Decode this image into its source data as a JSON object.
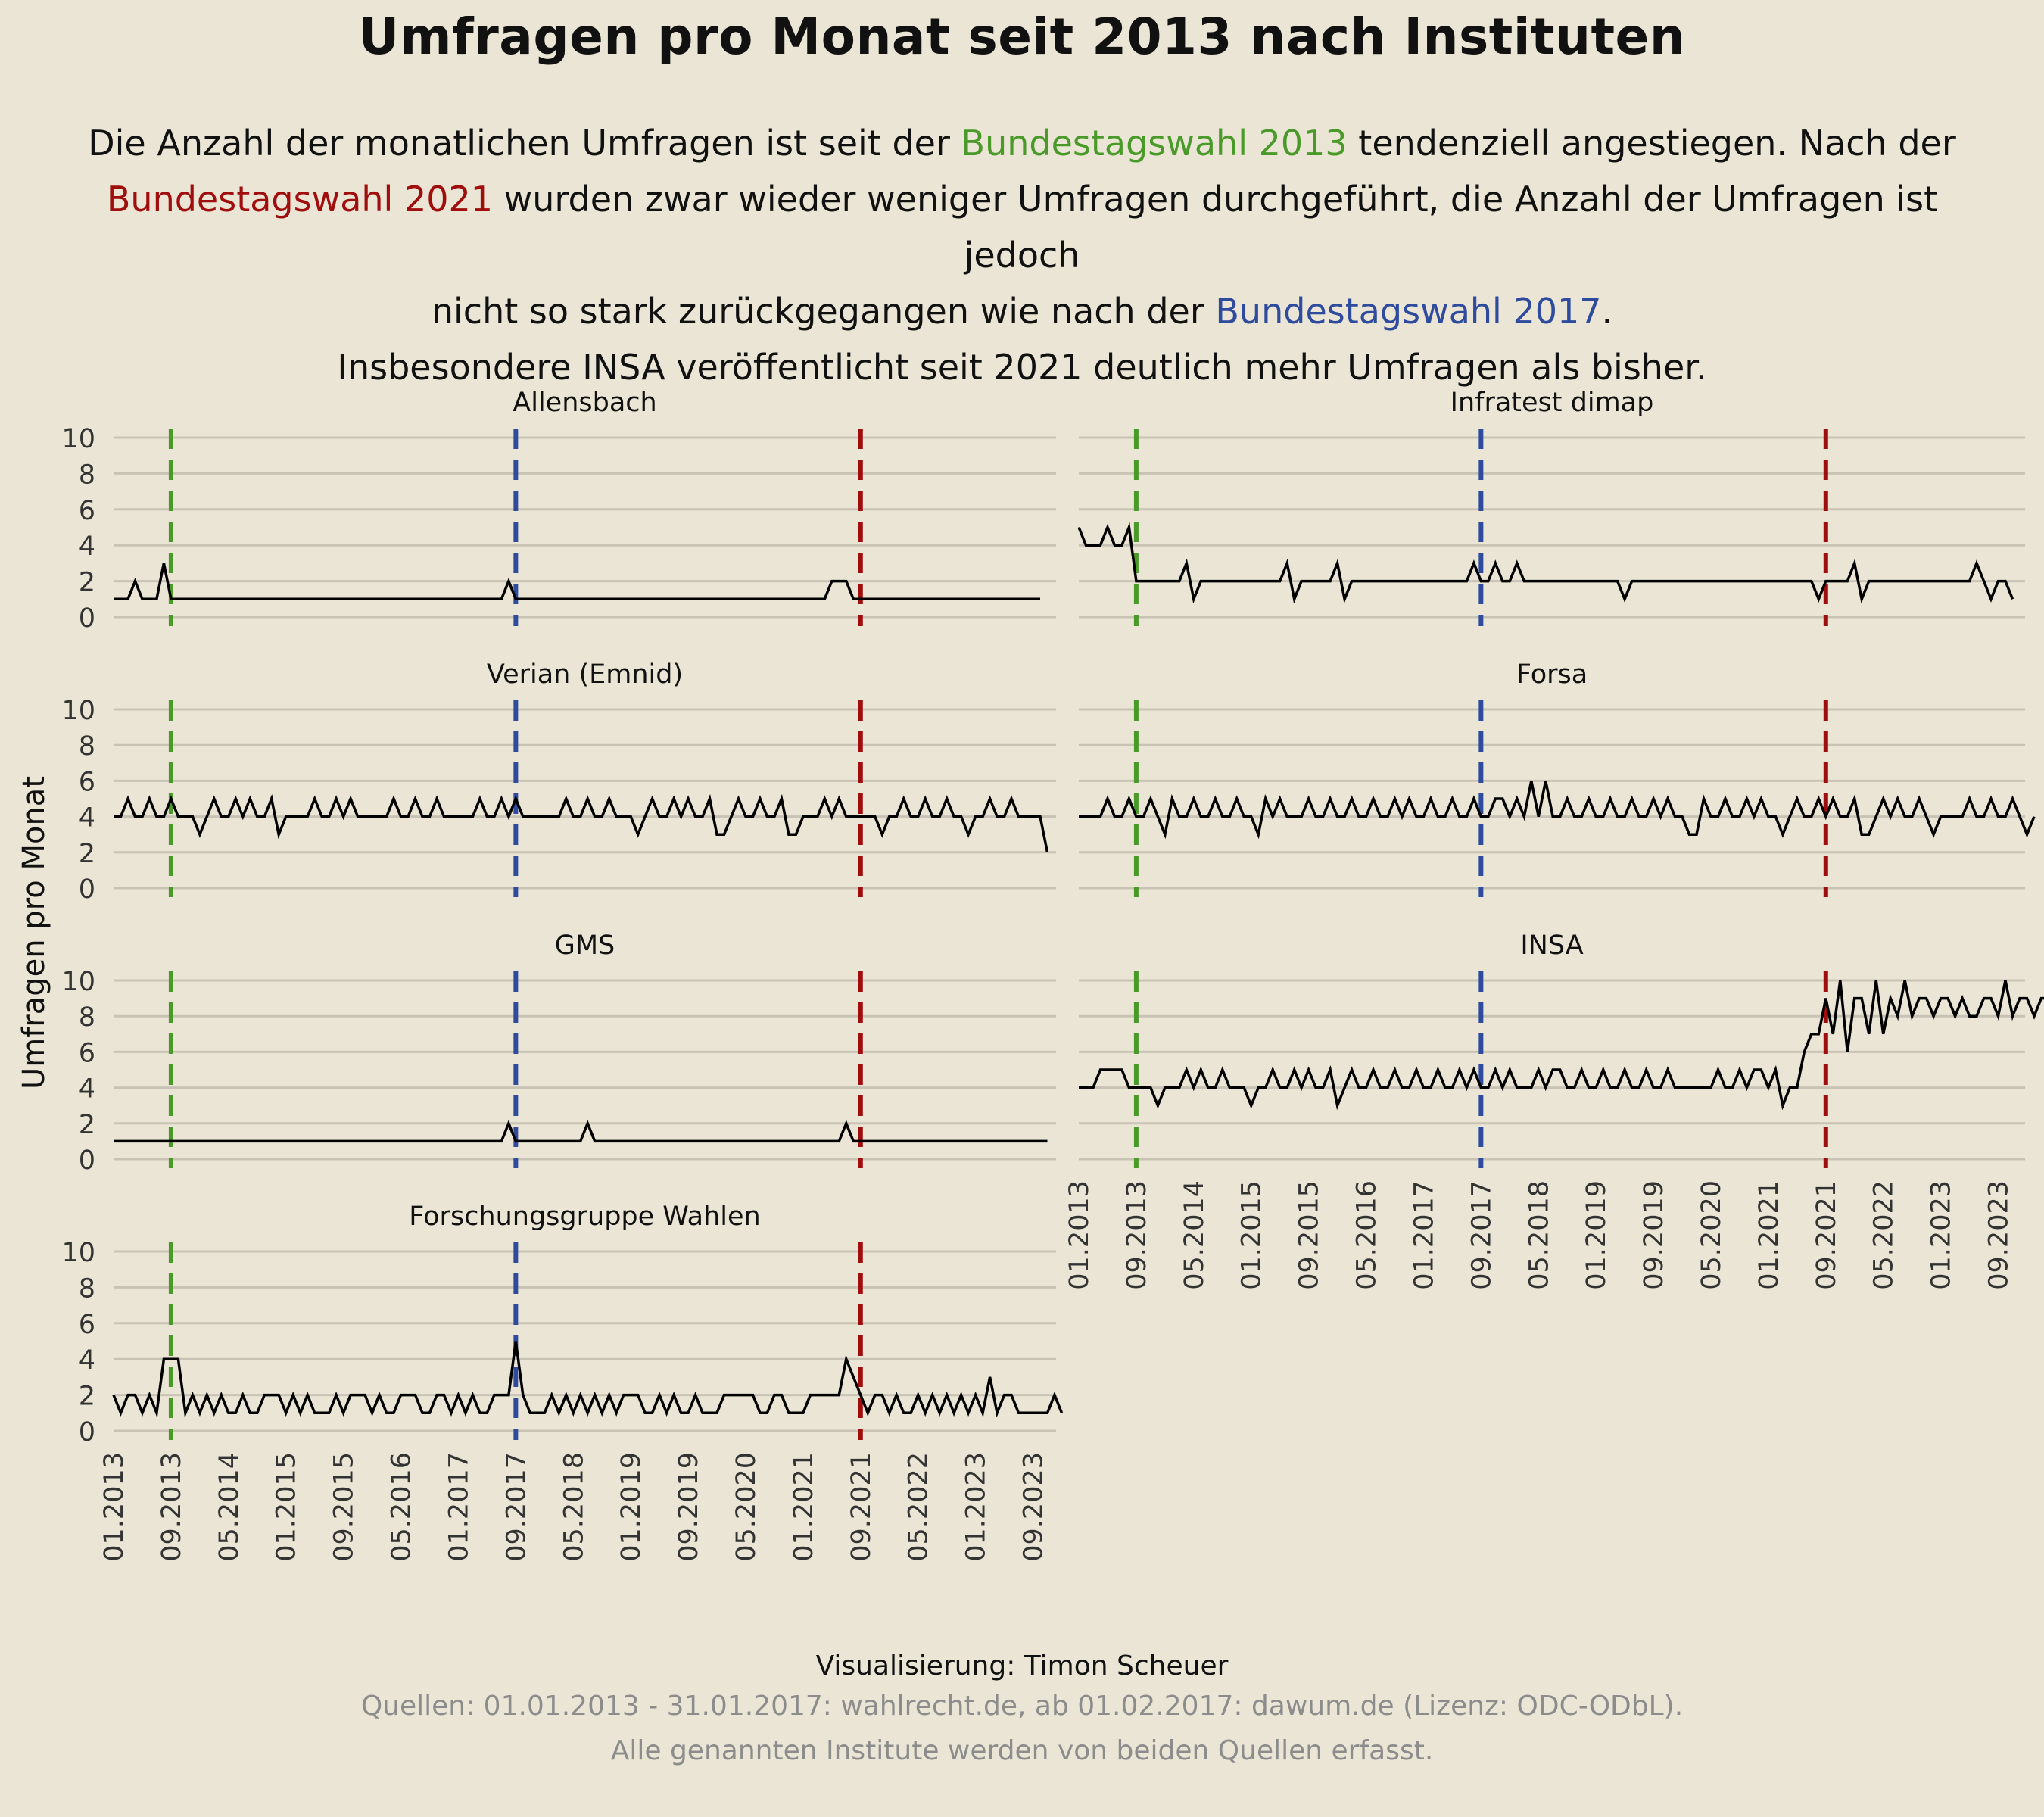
{
  "title": "Umfragen pro Monat seit 2013 nach Instituten",
  "subtitle": {
    "l1_a": "Die Anzahl der monatlichen Umfragen ist seit der ",
    "l1_b": "Bundestagswahl 2013",
    "l1_c": " tendenziell angestiegen. Nach der",
    "l2_a": "Bundestagswahl 2021",
    "l2_b": " wurden zwar wieder weniger Umfragen durchgeführt, die Anzahl der Umfragen ist jedoch",
    "l3_a": "nicht so stark zurückgegangen wie nach der ",
    "l3_b": "Bundestagswahl 2017",
    "l3_c": ".",
    "l4": "Insbesondere INSA veröffentlicht seit 2021 deutlich mehr Umfragen als bisher."
  },
  "footer": {
    "credit": "Visualisierung: Timon Scheuer",
    "source1": "Quellen: 01.01.2013 - 31.01.2017: wahlrecht.de, ab 01.02.2017: dawum.de (Lizenz: ODC-ODbL).",
    "source2": "Alle genannten Institute werden von beiden Quellen erfasst."
  },
  "colors": {
    "background": "#EAE5D5",
    "grid": "#C9C3B5",
    "line": "#000000",
    "election_2013": "#4A9A2A",
    "election_2017": "#2F4B9E",
    "election_2021": "#A00D0D"
  },
  "chart_data": {
    "type": "line",
    "layout": "small multiples (4 rows x 2 columns)",
    "ylabel": "Umfragen pro Monat",
    "xlabel": "",
    "x_start": "01.2013",
    "x_end": "10.2023",
    "x_frequency": "monthly",
    "ylim": [
      0,
      10
    ],
    "y_ticks": [
      0,
      2,
      4,
      6,
      8,
      10
    ],
    "x_ticks": [
      "01.2013",
      "09.2013",
      "05.2014",
      "01.2015",
      "09.2015",
      "05.2016",
      "01.2017",
      "09.2017",
      "05.2018",
      "01.2019",
      "09.2019",
      "05.2020",
      "01.2021",
      "09.2021",
      "05.2022",
      "01.2023",
      "09.2023"
    ],
    "grid": "horizontal",
    "election_lines": [
      {
        "date": "09.2013",
        "label": "Bundestagswahl 2013"
      },
      {
        "date": "09.2017",
        "label": "Bundestagswahl 2017"
      },
      {
        "date": "09.2021",
        "label": "Bundestagswahl 2021"
      }
    ],
    "panels": [
      {
        "name": "Allensbach",
        "values": [
          1,
          1,
          1,
          2,
          1,
          1,
          1,
          3,
          1,
          1,
          1,
          1,
          1,
          1,
          1,
          1,
          1,
          1,
          1,
          1,
          1,
          1,
          1,
          1,
          1,
          1,
          1,
          1,
          1,
          1,
          1,
          1,
          1,
          1,
          1,
          1,
          1,
          1,
          1,
          1,
          1,
          1,
          1,
          1,
          1,
          1,
          1,
          1,
          1,
          1,
          1,
          1,
          1,
          1,
          1,
          2,
          1,
          1,
          1,
          1,
          1,
          1,
          1,
          1,
          1,
          1,
          1,
          1,
          1,
          1,
          1,
          1,
          1,
          1,
          1,
          1,
          1,
          1,
          1,
          1,
          1,
          1,
          1,
          1,
          1,
          1,
          1,
          1,
          1,
          1,
          1,
          1,
          1,
          1,
          1,
          1,
          1,
          1,
          1,
          1,
          2,
          2,
          2,
          1,
          1,
          1,
          1,
          1,
          1,
          1,
          1,
          1,
          1,
          1,
          1,
          1,
          1,
          1,
          1,
          1,
          1,
          1,
          1,
          1,
          1,
          1,
          1,
          1,
          1,
          1
        ]
      },
      {
        "name": "Infratest dimap",
        "values": [
          5,
          4,
          4,
          4,
          5,
          4,
          4,
          5,
          2,
          2,
          2,
          2,
          2,
          2,
          2,
          3,
          1,
          2,
          2,
          2,
          2,
          2,
          2,
          2,
          2,
          2,
          2,
          2,
          2,
          3,
          1,
          2,
          2,
          2,
          2,
          2,
          3,
          1,
          2,
          2,
          2,
          2,
          2,
          2,
          2,
          2,
          2,
          2,
          2,
          2,
          2,
          2,
          2,
          2,
          2,
          3,
          2,
          2,
          3,
          2,
          2,
          3,
          2,
          2,
          2,
          2,
          2,
          2,
          2,
          2,
          2,
          2,
          2,
          2,
          2,
          2,
          1,
          2,
          2,
          2,
          2,
          2,
          2,
          2,
          2,
          2,
          2,
          2,
          2,
          2,
          2,
          2,
          2,
          2,
          2,
          2,
          2,
          2,
          2,
          2,
          2,
          2,
          2,
          1,
          2,
          2,
          2,
          2,
          3,
          1,
          2,
          2,
          2,
          2,
          2,
          2,
          2,
          2,
          2,
          2,
          2,
          2,
          2,
          2,
          2,
          3,
          2,
          1,
          2,
          2,
          1
        ]
      },
      {
        "name": "Verian (Emnid)",
        "values": [
          4,
          4,
          5,
          4,
          4,
          5,
          4,
          4,
          5,
          4,
          4,
          4,
          3,
          4,
          5,
          4,
          4,
          5,
          4,
          5,
          4,
          4,
          5,
          3,
          4,
          4,
          4,
          4,
          5,
          4,
          4,
          5,
          4,
          5,
          4,
          4,
          4,
          4,
          4,
          5,
          4,
          4,
          5,
          4,
          4,
          5,
          4,
          4,
          4,
          4,
          4,
          5,
          4,
          4,
          5,
          4,
          5,
          4,
          4,
          4,
          4,
          4,
          4,
          5,
          4,
          4,
          5,
          4,
          4,
          5,
          4,
          4,
          4,
          3,
          4,
          5,
          4,
          4,
          5,
          4,
          5,
          4,
          4,
          5,
          3,
          3,
          4,
          5,
          4,
          4,
          5,
          4,
          4,
          5,
          3,
          3,
          4,
          4,
          4,
          5,
          4,
          5,
          4,
          4,
          4,
          4,
          4,
          3,
          4,
          4,
          5,
          4,
          4,
          5,
          4,
          4,
          5,
          4,
          4,
          3,
          4,
          4,
          5,
          4,
          4,
          5,
          4,
          4,
          4,
          4,
          2
        ]
      },
      {
        "name": "Forsa",
        "values": [
          4,
          4,
          4,
          4,
          5,
          4,
          4,
          5,
          4,
          4,
          5,
          4,
          3,
          5,
          4,
          4,
          5,
          4,
          4,
          5,
          4,
          4,
          5,
          4,
          4,
          3,
          5,
          4,
          5,
          4,
          4,
          4,
          5,
          4,
          4,
          5,
          4,
          4,
          5,
          4,
          4,
          5,
          4,
          4,
          5,
          4,
          5,
          4,
          4,
          5,
          4,
          4,
          5,
          4,
          4,
          5,
          4,
          4,
          5,
          5,
          4,
          5,
          4,
          6,
          4,
          6,
          4,
          4,
          5,
          4,
          4,
          5,
          4,
          4,
          5,
          4,
          4,
          5,
          4,
          4,
          5,
          4,
          5,
          4,
          4,
          3,
          3,
          5,
          4,
          4,
          5,
          4,
          4,
          5,
          4,
          5,
          4,
          4,
          3,
          4,
          5,
          4,
          4,
          5,
          4,
          5,
          4,
          4,
          5,
          3,
          3,
          4,
          5,
          4,
          5,
          4,
          4,
          5,
          4,
          3,
          4,
          4,
          4,
          4,
          5,
          4,
          4,
          5,
          4,
          4,
          5,
          4,
          3,
          4
        ]
      },
      {
        "name": "GMS",
        "values": [
          1,
          1,
          1,
          1,
          1,
          1,
          1,
          1,
          1,
          1,
          1,
          1,
          1,
          1,
          1,
          1,
          1,
          1,
          1,
          1,
          1,
          1,
          1,
          1,
          1,
          1,
          1,
          1,
          1,
          1,
          1,
          1,
          1,
          1,
          1,
          1,
          1,
          1,
          1,
          1,
          1,
          1,
          1,
          1,
          1,
          1,
          1,
          1,
          1,
          1,
          1,
          1,
          1,
          1,
          1,
          2,
          1,
          1,
          1,
          1,
          1,
          1,
          1,
          1,
          1,
          1,
          2,
          1,
          1,
          1,
          1,
          1,
          1,
          1,
          1,
          1,
          1,
          1,
          1,
          1,
          1,
          1,
          1,
          1,
          1,
          1,
          1,
          1,
          1,
          1,
          1,
          1,
          1,
          1,
          1,
          1,
          1,
          1,
          1,
          1,
          1,
          1,
          2,
          1,
          1,
          1,
          1,
          1,
          1,
          1,
          1,
          1,
          1,
          1,
          1,
          1,
          1,
          1,
          1,
          1,
          1,
          1,
          1,
          1,
          1,
          1,
          1,
          1,
          1,
          1,
          1
        ]
      },
      {
        "name": "INSA",
        "values": [
          4,
          4,
          4,
          5,
          5,
          5,
          5,
          4,
          4,
          4,
          4,
          3,
          4,
          4,
          4,
          5,
          4,
          5,
          4,
          4,
          5,
          4,
          4,
          4,
          3,
          4,
          4,
          5,
          4,
          4,
          5,
          4,
          5,
          4,
          4,
          5,
          3,
          4,
          5,
          4,
          4,
          5,
          4,
          4,
          5,
          4,
          4,
          5,
          4,
          4,
          5,
          4,
          4,
          5,
          4,
          5,
          4,
          4,
          5,
          4,
          5,
          4,
          4,
          4,
          5,
          4,
          5,
          5,
          4,
          4,
          5,
          4,
          4,
          5,
          4,
          4,
          5,
          4,
          4,
          5,
          4,
          4,
          5,
          4,
          4,
          4,
          4,
          4,
          4,
          5,
          4,
          4,
          5,
          4,
          5,
          5,
          4,
          5,
          3,
          4,
          4,
          6,
          7,
          7,
          9,
          7,
          10,
          6,
          9,
          9,
          7,
          10,
          7,
          9,
          8,
          10,
          8,
          9,
          9,
          8,
          9,
          9,
          8,
          9,
          8,
          8,
          9,
          9,
          8,
          10,
          8,
          9,
          9,
          8,
          9,
          9
        ]
      },
      {
        "name": "Forschungsgruppe Wahlen",
        "values": [
          2,
          1,
          2,
          2,
          1,
          2,
          1,
          4,
          4,
          4,
          1,
          2,
          1,
          2,
          1,
          2,
          1,
          1,
          2,
          1,
          1,
          2,
          2,
          2,
          1,
          2,
          1,
          2,
          1,
          1,
          1,
          2,
          1,
          2,
          2,
          2,
          1,
          2,
          1,
          1,
          2,
          2,
          2,
          1,
          1,
          2,
          2,
          1,
          2,
          1,
          2,
          1,
          1,
          2,
          2,
          2,
          5,
          2,
          1,
          1,
          1,
          2,
          1,
          2,
          1,
          2,
          1,
          2,
          1,
          2,
          1,
          2,
          2,
          2,
          1,
          1,
          2,
          1,
          2,
          1,
          1,
          2,
          1,
          1,
          1,
          2,
          2,
          2,
          2,
          2,
          1,
          1,
          2,
          2,
          1,
          1,
          1,
          2,
          2,
          2,
          2,
          2,
          4,
          3,
          2,
          1,
          2,
          2,
          1,
          2,
          1,
          1,
          2,
          1,
          2,
          1,
          2,
          1,
          2,
          1,
          2,
          1,
          3,
          1,
          2,
          2,
          1,
          1,
          1,
          1,
          1,
          2,
          1
        ]
      }
    ]
  }
}
